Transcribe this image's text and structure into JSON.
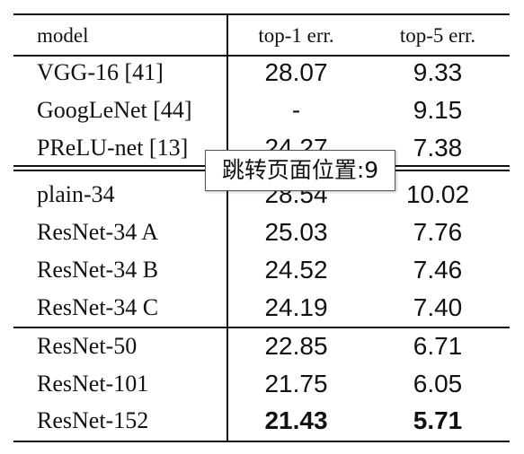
{
  "table": {
    "header": {
      "model": "model",
      "top1": "top-1 err.",
      "top5": "top-5 err."
    },
    "groups": [
      {
        "rows": [
          {
            "model": "VGG-16 [41]",
            "top1": "28.07",
            "top5": "9.33"
          },
          {
            "model": "GoogLeNet [44]",
            "top1": "-",
            "top5": "9.15"
          },
          {
            "model": "PReLU-net [13]",
            "top1": "24.27",
            "top5": "7.38"
          }
        ]
      },
      {
        "rows": [
          {
            "model": "plain-34",
            "top1": "28.54",
            "top5": "10.02"
          },
          {
            "model": "ResNet-34 A",
            "top1": "25.03",
            "top5": "7.76"
          },
          {
            "model": "ResNet-34 B",
            "top1": "24.52",
            "top5": "7.46"
          },
          {
            "model": "ResNet-34 C",
            "top1": "24.19",
            "top5": "7.40"
          }
        ]
      },
      {
        "rows": [
          {
            "model": "ResNet-50",
            "top1": "22.85",
            "top5": "6.71"
          },
          {
            "model": "ResNet-101",
            "top1": "21.75",
            "top5": "6.05"
          },
          {
            "model": "ResNet-152",
            "top1": "21.43",
            "top5": "5.71",
            "bold": true
          }
        ]
      }
    ]
  },
  "tooltip": {
    "text": "跳转页面位置:9"
  }
}
